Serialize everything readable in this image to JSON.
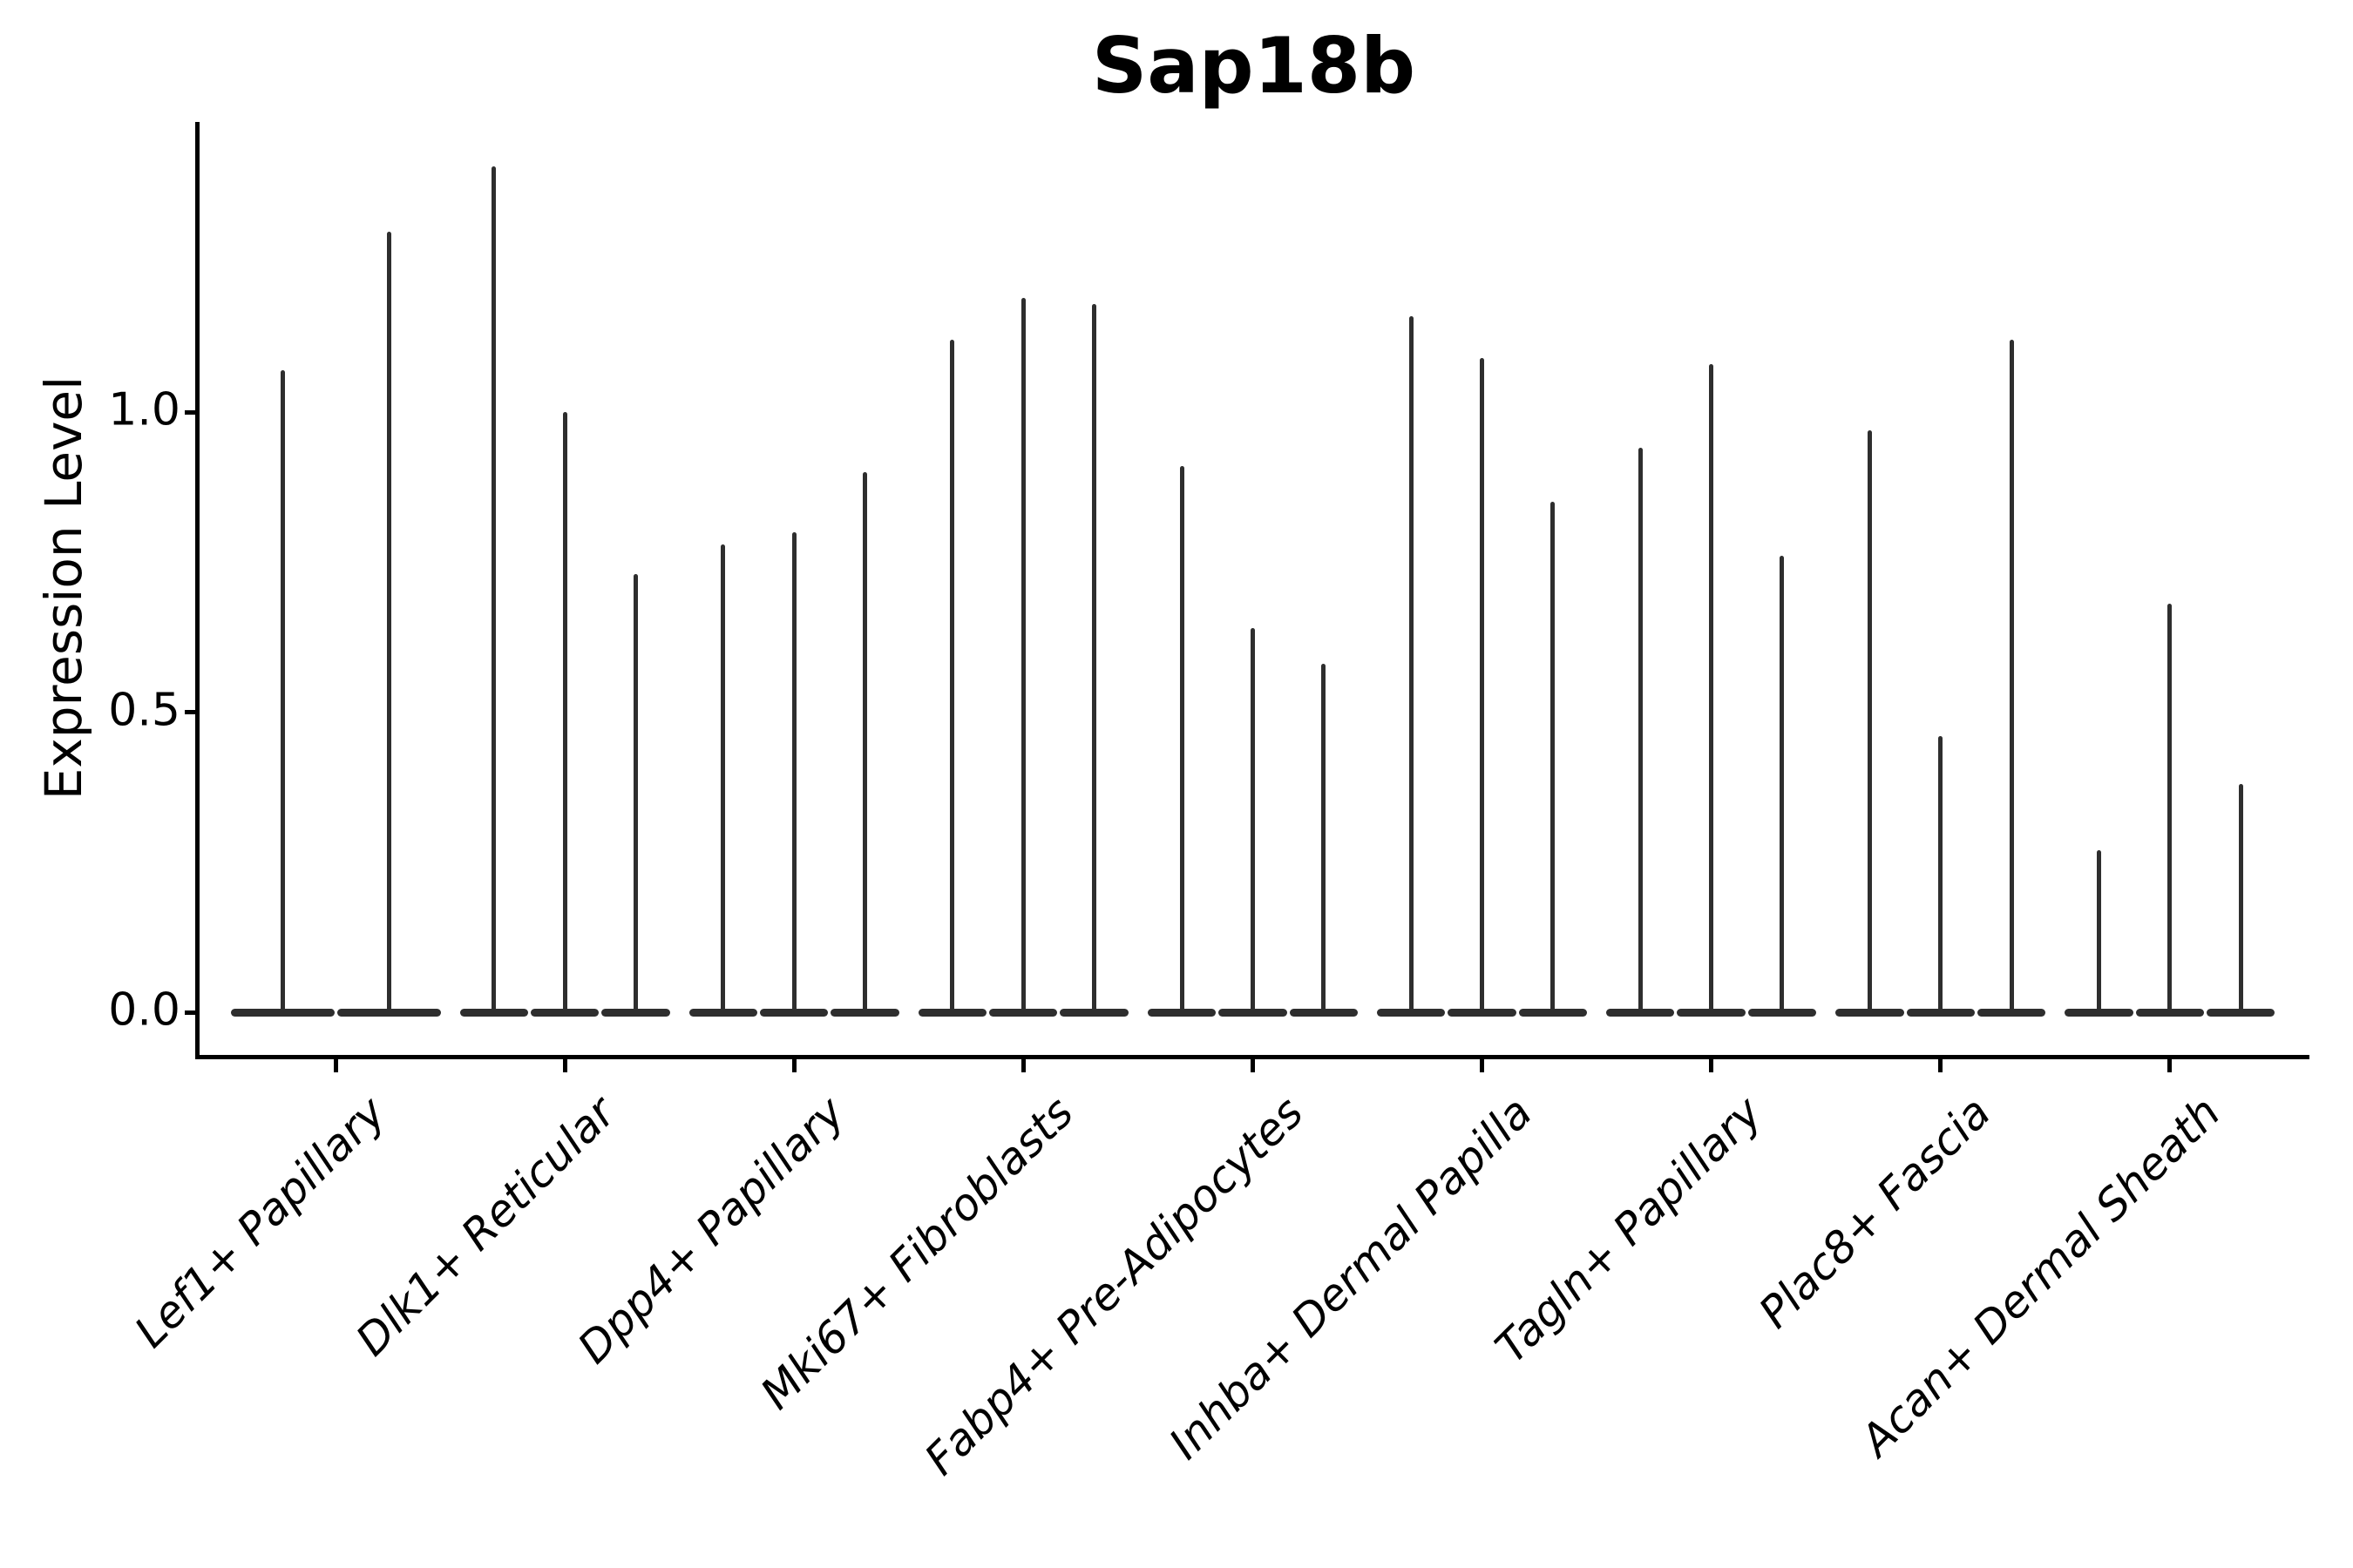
{
  "title": "Sap18b",
  "ylabel": "Expression Level",
  "colors": {
    "violin": "#2e2e2e",
    "axis": "#000000",
    "text": "#000000",
    "background": "#ffffff"
  },
  "chart_data": {
    "type": "violin",
    "title": "Sap18b",
    "xlabel": "",
    "ylabel": "Expression Level",
    "yticks": [
      0.0,
      0.5,
      1.0
    ],
    "ylim": [
      -0.07,
      1.49
    ],
    "grid": false,
    "legend": "none",
    "x_tick_rotation": 45,
    "categories": [
      "Lef1+ Papillary",
      "Dlk1+ Reticular",
      "Dpp4+ Papillary",
      "Mki67+ Fibroblasts",
      "Fabp4+ Pre-Adipocytes",
      "Inhba+ Dermal Papilla",
      "Tagln+ Papillary",
      "Plac8+ Fascia",
      "Acan+ Dermal Sheath"
    ],
    "series": [
      {
        "category": "Lef1+ Papillary",
        "violin_max_expression": [
          1.07,
          1.3
        ]
      },
      {
        "category": "Dlk1+ Reticular",
        "violin_max_expression": [
          1.41,
          1.0,
          0.73
        ]
      },
      {
        "category": "Dpp4+ Papillary",
        "violin_max_expression": [
          0.78,
          0.8,
          0.9
        ]
      },
      {
        "category": "Mki67+ Fibroblasts",
        "violin_max_expression": [
          1.12,
          1.19,
          1.18
        ]
      },
      {
        "category": "Fabp4+ Pre-Adipocytes",
        "violin_max_expression": [
          0.91,
          0.64,
          0.58
        ]
      },
      {
        "category": "Inhba+ Dermal Papilla",
        "violin_max_expression": [
          1.16,
          1.09,
          0.85
        ]
      },
      {
        "category": "Tagln+ Papillary",
        "violin_max_expression": [
          0.94,
          1.08,
          0.76
        ]
      },
      {
        "category": "Plac8+ Fascia",
        "violin_max_expression": [
          0.97,
          0.46,
          1.12
        ]
      },
      {
        "category": "Acan+ Dermal Sheath",
        "violin_max_expression": [
          0.27,
          0.68,
          0.38
        ]
      }
    ],
    "note": "Each violin is fully collapsed at expression 0 (flat body) with a thin tail reaching its max expression value."
  }
}
